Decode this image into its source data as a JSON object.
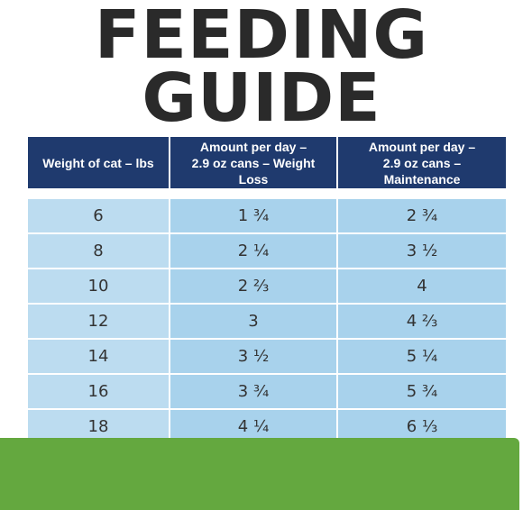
{
  "title": {
    "line1": "FEEDING",
    "line2": "GUIDE"
  },
  "table": {
    "headers": [
      {
        "line1": "Weight of cat – lbs",
        "line2": ""
      },
      {
        "line1": "Amount per day –",
        "line2": "2.9 oz cans – Weight Loss"
      },
      {
        "line1": "Amount per day –",
        "line2": "2.9 oz cans – Maintenance"
      }
    ],
    "rows": [
      {
        "weight": "6",
        "weight_loss": "1 ¾",
        "maintenance": "2 ¾"
      },
      {
        "weight": "8",
        "weight_loss": "2 ¼",
        "maintenance": "3 ½"
      },
      {
        "weight": "10",
        "weight_loss": "2 ⅔",
        "maintenance": "4"
      },
      {
        "weight": "12",
        "weight_loss": "3",
        "maintenance": "4 ⅔"
      },
      {
        "weight": "14",
        "weight_loss": "3 ½",
        "maintenance": "5 ¼"
      },
      {
        "weight": "16",
        "weight_loss": "3 ¾",
        "maintenance": "5 ¾"
      },
      {
        "weight": "18",
        "weight_loss": "4 ¼",
        "maintenance": "6 ⅓"
      }
    ]
  },
  "colors": {
    "header_bg": "#1f3a6e",
    "cell_bg": "#a8d2ec",
    "title_text": "#2a2a2a",
    "band": "#64a83f"
  }
}
